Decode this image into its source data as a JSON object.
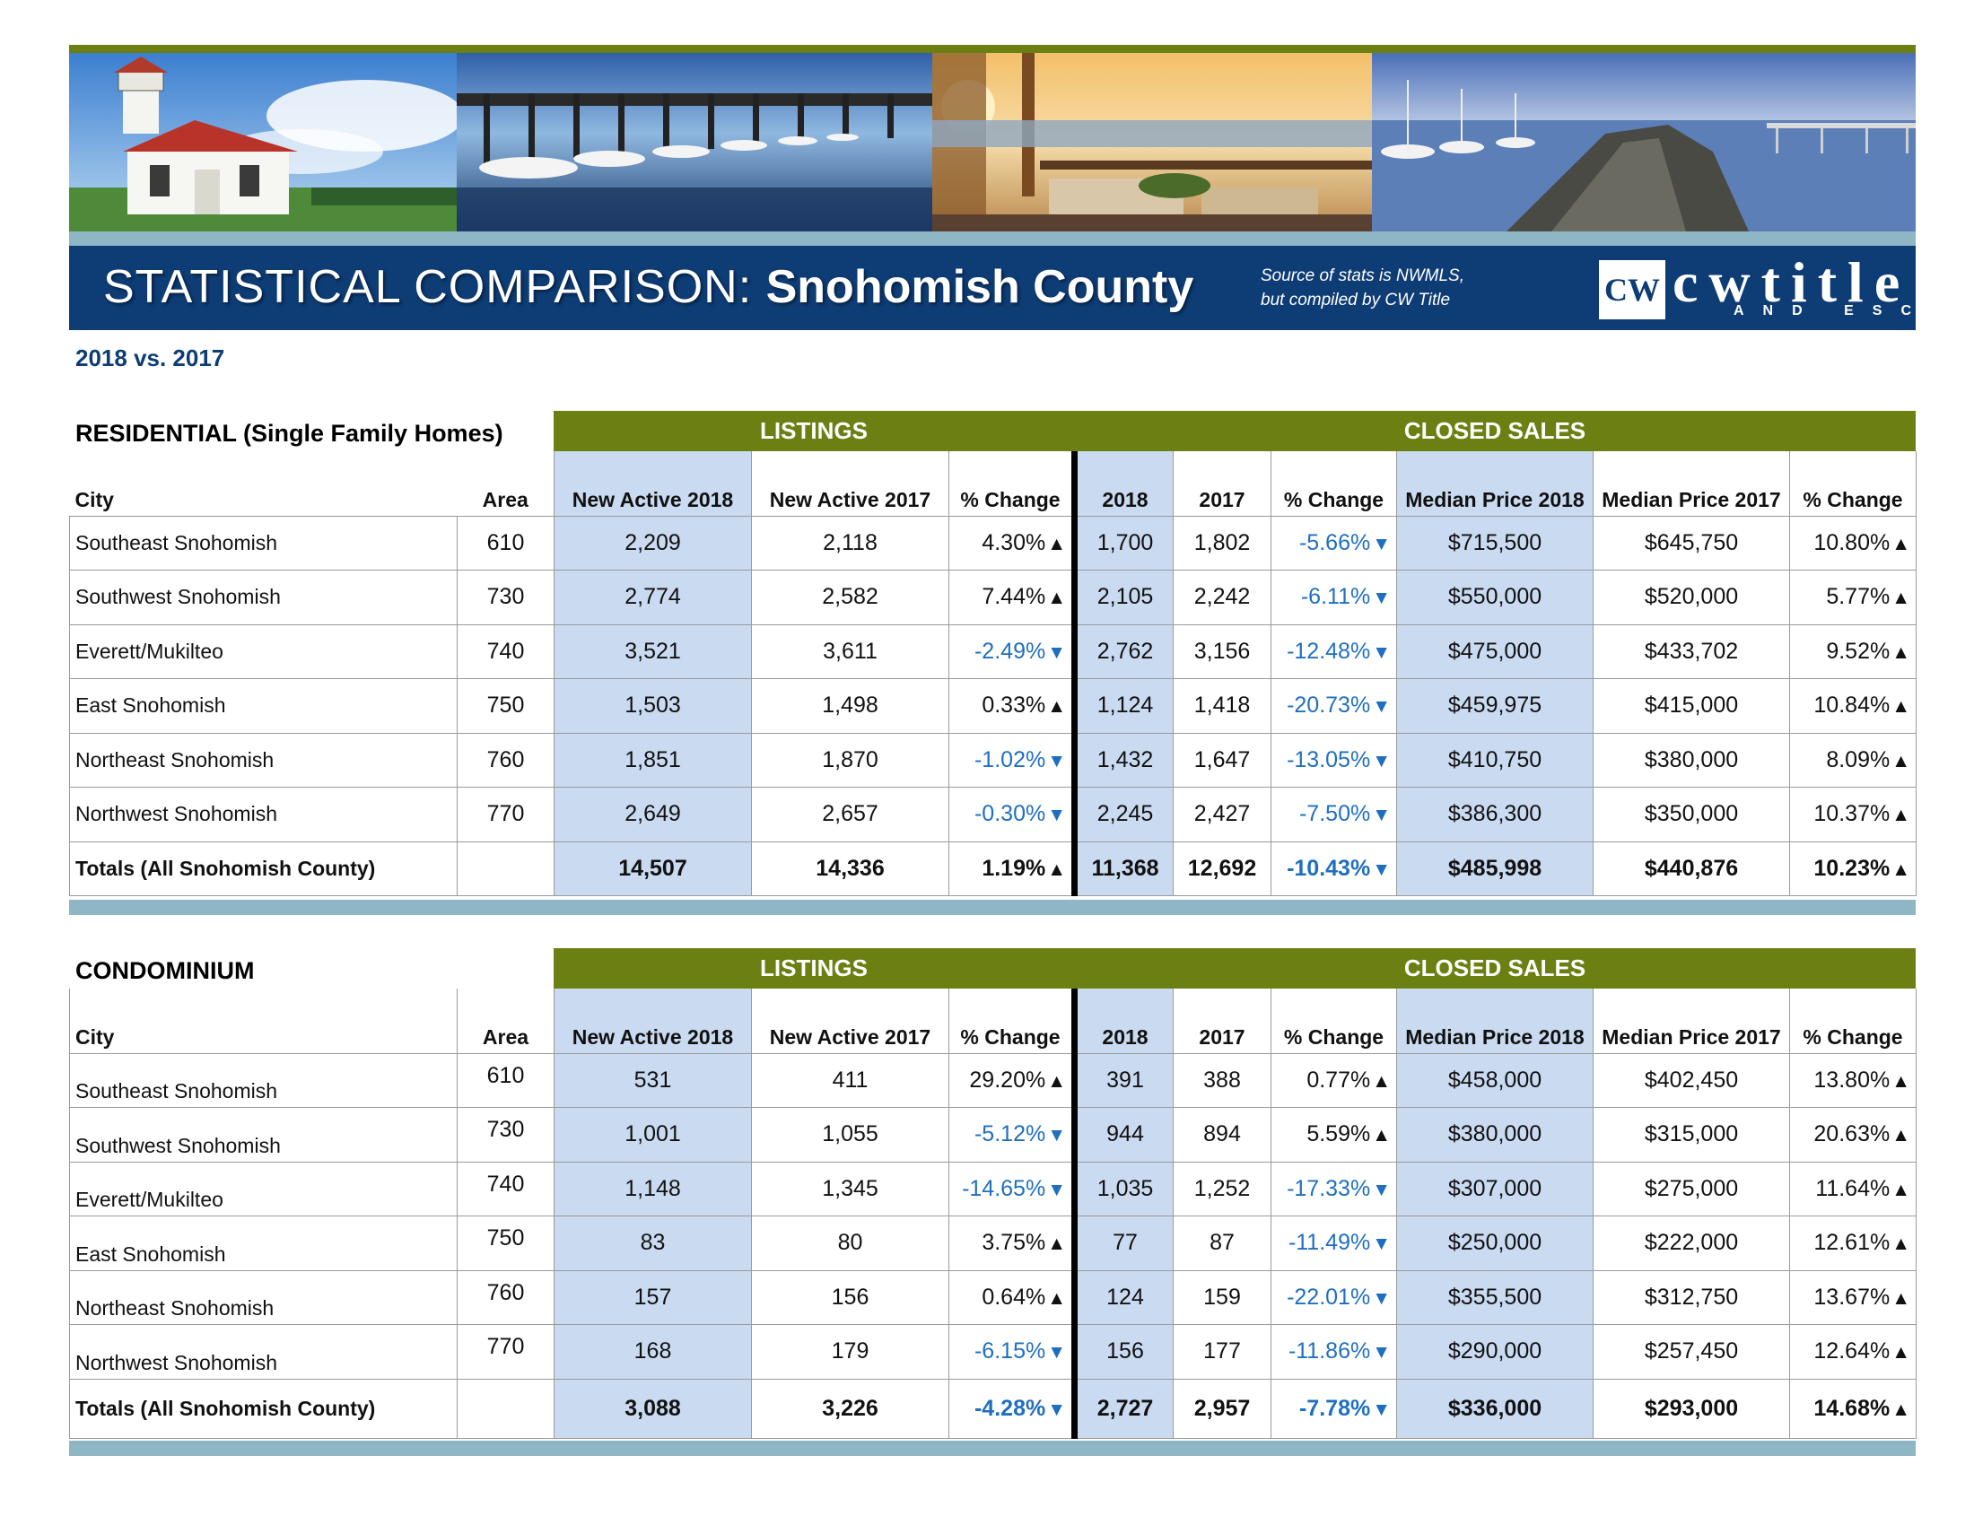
{
  "header": {
    "title_light": "STATISTICAL COMPARISON:",
    "title_bold": "Snohomish County",
    "source_line1": "Source of stats is NWMLS,",
    "source_line2": "but compiled by CW Title",
    "logo_box": "CW",
    "logo_name": "cwtitle",
    "logo_sub": "AND ESCROW",
    "year_label": "2018 vs. 2017"
  },
  "columns": {
    "city": "City",
    "area": "Area",
    "new_active_2018": "New Active 2018",
    "new_active_2017": "New Active 2017",
    "pct_change": "% Change",
    "y2018": "2018",
    "y2017": "2017",
    "median_2018": "Median Price 2018",
    "median_2017": "Median Price 2017"
  },
  "groups": {
    "listings": "LISTINGS",
    "closed_sales": "CLOSED SALES"
  },
  "residential": {
    "title": "RESIDENTIAL (Single Family Homes)",
    "rows": [
      {
        "city": "Southeast Snohomish",
        "area": "610",
        "na18": "2,209",
        "na17": "2,118",
        "lchg": "4.30%",
        "ldir": "up",
        "c18": "1,700",
        "c17": "1,802",
        "cchg": "-5.66%",
        "cdir": "down",
        "m18": "$715,500",
        "m17": "$645,750",
        "mchg": "10.80%",
        "mdir": "up"
      },
      {
        "city": "Southwest Snohomish",
        "area": "730",
        "na18": "2,774",
        "na17": "2,582",
        "lchg": "7.44%",
        "ldir": "up",
        "c18": "2,105",
        "c17": "2,242",
        "cchg": "-6.11%",
        "cdir": "down",
        "m18": "$550,000",
        "m17": "$520,000",
        "mchg": "5.77%",
        "mdir": "up"
      },
      {
        "city": "Everett/Mukilteo",
        "area": "740",
        "na18": "3,521",
        "na17": "3,611",
        "lchg": "-2.49%",
        "ldir": "down",
        "c18": "2,762",
        "c17": "3,156",
        "cchg": "-12.48%",
        "cdir": "down",
        "m18": "$475,000",
        "m17": "$433,702",
        "mchg": "9.52%",
        "mdir": "up"
      },
      {
        "city": "East Snohomish",
        "area": "750",
        "na18": "1,503",
        "na17": "1,498",
        "lchg": "0.33%",
        "ldir": "up",
        "c18": "1,124",
        "c17": "1,418",
        "cchg": "-20.73%",
        "cdir": "down",
        "m18": "$459,975",
        "m17": "$415,000",
        "mchg": "10.84%",
        "mdir": "up"
      },
      {
        "city": "Northeast Snohomish",
        "area": "760",
        "na18": "1,851",
        "na17": "1,870",
        "lchg": "-1.02%",
        "ldir": "down",
        "c18": "1,432",
        "c17": "1,647",
        "cchg": "-13.05%",
        "cdir": "down",
        "m18": "$410,750",
        "m17": "$380,000",
        "mchg": "8.09%",
        "mdir": "up"
      },
      {
        "city": "Northwest Snohomish",
        "area": "770",
        "na18": "2,649",
        "na17": "2,657",
        "lchg": "-0.30%",
        "ldir": "down",
        "c18": "2,245",
        "c17": "2,427",
        "cchg": "-7.50%",
        "cdir": "down",
        "m18": "$386,300",
        "m17": "$350,000",
        "mchg": "10.37%",
        "mdir": "up"
      }
    ],
    "totals": {
      "city": "Totals (All Snohomish County)",
      "area": "",
      "na18": "14,507",
      "na17": "14,336",
      "lchg": "1.19%",
      "ldir": "up",
      "c18": "11,368",
      "c17": "12,692",
      "cchg": "-10.43%",
      "cdir": "down",
      "m18": "$485,998",
      "m17": "$440,876",
      "mchg": "10.23%",
      "mdir": "up"
    }
  },
  "condo": {
    "title": "CONDOMINIUM",
    "rows": [
      {
        "city": "Southeast Snohomish",
        "area": "610",
        "na18": "531",
        "na17": "411",
        "lchg": "29.20%",
        "ldir": "up",
        "c18": "391",
        "c17": "388",
        "cchg": "0.77%",
        "cdir": "up",
        "m18": "$458,000",
        "m17": "$402,450",
        "mchg": "13.80%",
        "mdir": "up"
      },
      {
        "city": "Southwest Snohomish",
        "area": "730",
        "na18": "1,001",
        "na17": "1,055",
        "lchg": "-5.12%",
        "ldir": "down",
        "c18": "944",
        "c17": "894",
        "cchg": "5.59%",
        "cdir": "up",
        "m18": "$380,000",
        "m17": "$315,000",
        "mchg": "20.63%",
        "mdir": "up"
      },
      {
        "city": "Everett/Mukilteo",
        "area": "740",
        "na18": "1,148",
        "na17": "1,345",
        "lchg": "-14.65%",
        "ldir": "down",
        "c18": "1,035",
        "c17": "1,252",
        "cchg": "-17.33%",
        "cdir": "down",
        "m18": "$307,000",
        "m17": "$275,000",
        "mchg": "11.64%",
        "mdir": "up"
      },
      {
        "city": "East Snohomish",
        "area": "750",
        "na18": "83",
        "na17": "80",
        "lchg": "3.75%",
        "ldir": "up",
        "c18": "77",
        "c17": "87",
        "cchg": "-11.49%",
        "cdir": "down",
        "m18": "$250,000",
        "m17": "$222,000",
        "mchg": "12.61%",
        "mdir": "up"
      },
      {
        "city": "Northeast Snohomish",
        "area": "760",
        "na18": "157",
        "na17": "156",
        "lchg": "0.64%",
        "ldir": "up",
        "c18": "124",
        "c17": "159",
        "cchg": "-22.01%",
        "cdir": "down",
        "m18": "$355,500",
        "m17": "$312,750",
        "mchg": "13.67%",
        "mdir": "up"
      },
      {
        "city": "Northwest Snohomish",
        "area": "770",
        "na18": "168",
        "na17": "179",
        "lchg": "-6.15%",
        "ldir": "down",
        "c18": "156",
        "c17": "177",
        "cchg": "-11.86%",
        "cdir": "down",
        "m18": "$290,000",
        "m17": "$257,450",
        "mchg": "12.64%",
        "mdir": "up"
      }
    ],
    "totals": {
      "city": "Totals (All Snohomish County)",
      "area": "",
      "na18": "3,088",
      "na17": "3,226",
      "lchg": "-4.28%",
      "ldir": "down",
      "c18": "2,727",
      "c17": "2,957",
      "cchg": "-7.78%",
      "cdir": "down",
      "m18": "$336,000",
      "m17": "$293,000",
      "mchg": "14.68%",
      "mdir": "up"
    }
  },
  "arrows": {
    "up": "▲",
    "down": "▼"
  },
  "colors": {
    "olive": "#6b7f12",
    "navy": "#0e3c74",
    "light_blue_cell": "#c9daf1",
    "negative_text": "#1f6fc0",
    "band": "#8fb6c4"
  }
}
